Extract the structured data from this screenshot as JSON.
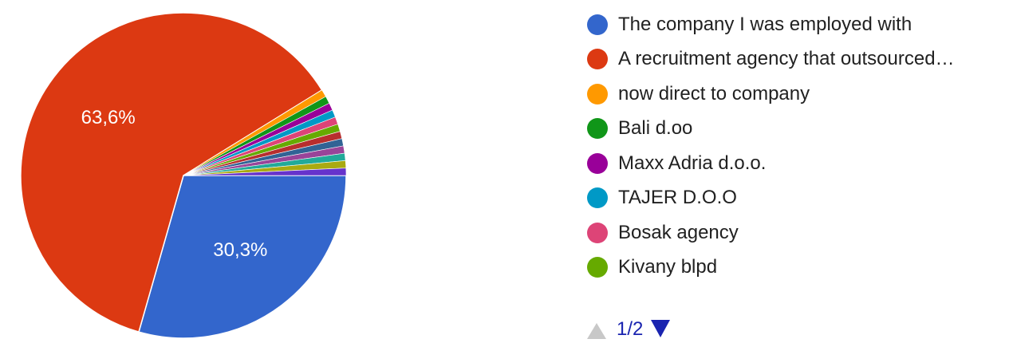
{
  "chart_data": {
    "type": "pie",
    "slices": [
      {
        "label": "The company I was employed with",
        "value": 30.3,
        "display": "30,3%",
        "color": "#3366cc"
      },
      {
        "label": "A recruitment agency that outsourced…",
        "value": 63.6,
        "display": "63,6%",
        "color": "#dc3912"
      },
      {
        "label": "now direct to company",
        "value": 0.76,
        "display": "",
        "color": "#ff9900"
      },
      {
        "label": "Bali d.oo",
        "value": 0.76,
        "display": "",
        "color": "#109618"
      },
      {
        "label": "Maxx Adria d.o.o.",
        "value": 0.76,
        "display": "",
        "color": "#990099"
      },
      {
        "label": "TAJER D.O.O",
        "value": 0.76,
        "display": "",
        "color": "#0099c6"
      },
      {
        "label": "Bosak agency",
        "value": 0.76,
        "display": "",
        "color": "#dd4477"
      },
      {
        "label": "Kivany blpd",
        "value": 0.76,
        "display": "",
        "color": "#66aa00"
      }
    ],
    "hidden_slice_colors": [
      "#b82e2e",
      "#316395",
      "#994499",
      "#22aa99",
      "#aaaa11",
      "#6633cc"
    ],
    "hidden_slice_value": 0.75,
    "legend_placement": "right"
  },
  "pager": {
    "text": "1/2"
  }
}
